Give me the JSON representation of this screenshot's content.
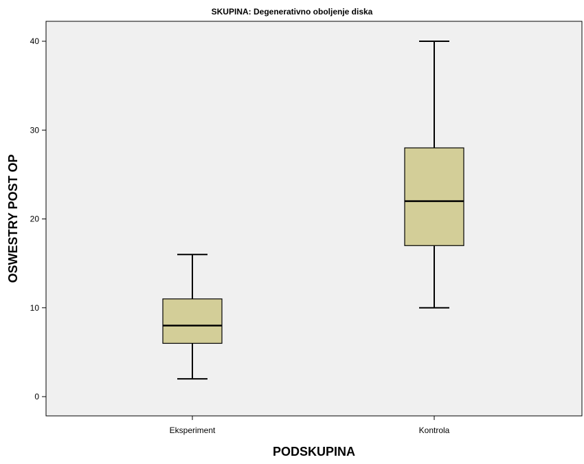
{
  "chart_data": {
    "type": "boxplot",
    "title": "SKUPINA: Degenerativno oboljenje diska",
    "xlabel": "PODSKUPINA",
    "ylabel": "OSWESTRY POST OP",
    "ylim": [
      -2.2,
      42.3
    ],
    "yticks": [
      0,
      10,
      20,
      30,
      40
    ],
    "grid": false,
    "categories": [
      "Eksperiment",
      "Kontrola"
    ],
    "boxes": [
      {
        "name": "Eksperiment",
        "whisker_low": 2,
        "q1": 6,
        "median": 8,
        "q3": 11,
        "whisker_high": 16
      },
      {
        "name": "Kontrola",
        "whisker_low": 10,
        "q1": 17,
        "median": 22,
        "q3": 28,
        "whisker_high": 40
      }
    ],
    "colors": {
      "plot_background": "#f0f0f0",
      "box_fill": "#d3ce98",
      "stroke": "#000000"
    }
  }
}
